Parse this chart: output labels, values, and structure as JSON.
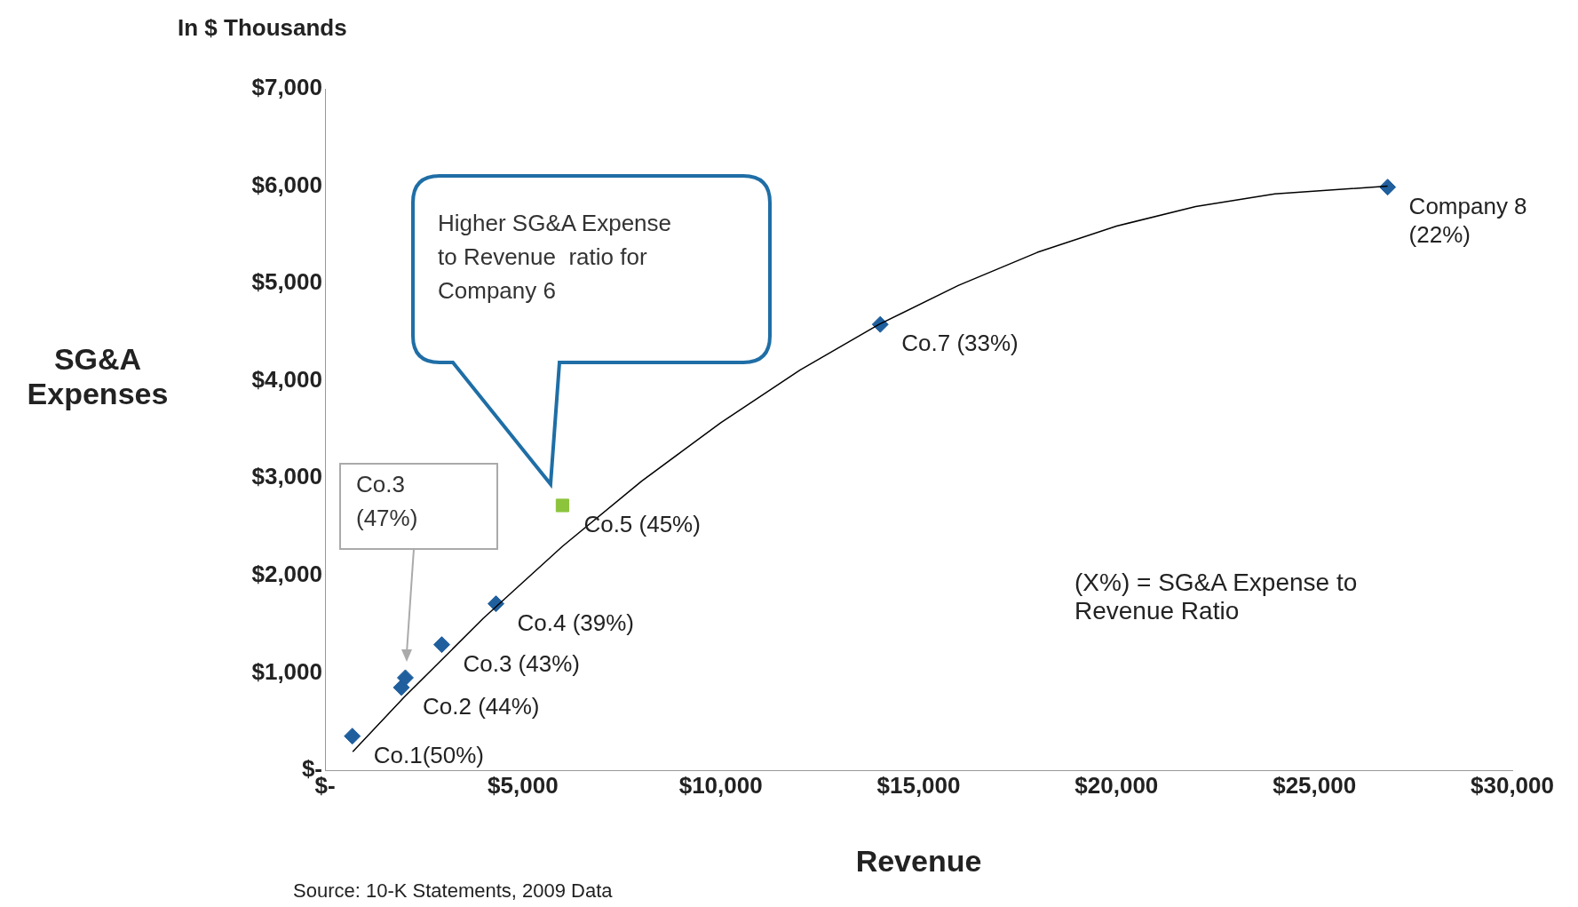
{
  "chart_data": {
    "type": "scatter",
    "subtitle": "In $ Thousands",
    "xlabel": "Revenue",
    "ylabel": "SG&A\nExpenses",
    "xlim": [
      0,
      30000
    ],
    "ylim": [
      0,
      7000
    ],
    "xticks": [
      {
        "value": 0,
        "label": "$-"
      },
      {
        "value": 5000,
        "label": "$5,000"
      },
      {
        "value": 10000,
        "label": "$10,000"
      },
      {
        "value": 15000,
        "label": "$15,000"
      },
      {
        "value": 20000,
        "label": "$20,000"
      },
      {
        "value": 25000,
        "label": "$25,000"
      },
      {
        "value": 30000,
        "label": "$30,000"
      }
    ],
    "yticks": [
      {
        "value": 0,
        "label": "$-"
      },
      {
        "value": 1000,
        "label": "$1,000"
      },
      {
        "value": 2000,
        "label": "$2,000"
      },
      {
        "value": 3000,
        "label": "$3,000"
      },
      {
        "value": 4000,
        "label": "$4,000"
      },
      {
        "value": 5000,
        "label": "$5,000"
      },
      {
        "value": 6000,
        "label": "$6,000"
      },
      {
        "value": 7000,
        "label": "$7,000"
      }
    ],
    "grid": false,
    "legend": false,
    "series": [
      {
        "type": "line",
        "color": "#000000",
        "marker": "none",
        "x": [
          700,
          2000,
          4000,
          6000,
          8000,
          10000,
          12000,
          14000,
          16000,
          18000,
          20000,
          22000,
          24000,
          26850
        ],
        "values": [
          190,
          750,
          1560,
          2300,
          2970,
          3570,
          4110,
          4580,
          4980,
          5320,
          5590,
          5790,
          5920,
          6000
        ]
      },
      {
        "type": "scatter",
        "color": "#1f5f9e",
        "marker": "diamond",
        "x": [
          690,
          1930,
          2030,
          2950,
          4320,
          14030,
          26850
        ],
        "values": [
          350,
          850,
          950,
          1290,
          1710,
          4580,
          5990
        ],
        "value_labels": [
          "Co.1(50%)",
          "Co.2 (44%)",
          null,
          "Co.3 (43%)",
          "Co.4 (39%)",
          "Co.7 (33%)",
          "Company 8\n(22%)"
        ]
      },
      {
        "type": "scatter",
        "color": "#8cc43c",
        "marker": "square",
        "x": [
          6000
        ],
        "values": [
          2720
        ],
        "value_labels": [
          "Co.5 (45%)"
        ]
      }
    ],
    "annotations": [
      "Higher SG&A Expense\nto Revenue  ratio for\nCompany 6",
      "Co.3\n(47%)",
      "(X%) =  SG&A Expense to\nRevenue  Ratio",
      "Source:  10-K Statements, 2009 Data"
    ]
  }
}
